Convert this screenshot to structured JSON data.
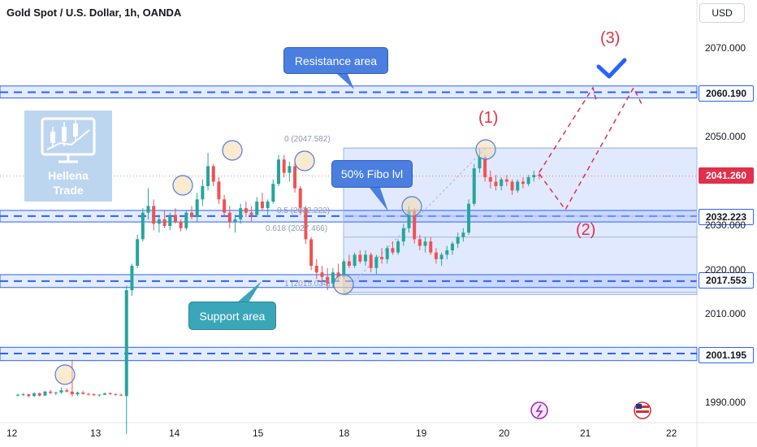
{
  "title": "Gold Spot / U.S. Dollar, 1h, OANDA",
  "currency_button": "USD",
  "logo": {
    "line1": "Hellena",
    "line2": "Trade"
  },
  "callouts": {
    "resistance": "Resistance area",
    "fibo": "50% Fibo lvl",
    "support": "Support area"
  },
  "waves": {
    "w1": "(1)",
    "w2": "(2)",
    "w3": "(3)"
  },
  "fib_labels": {
    "f0": "0 (2047.582)",
    "f05": "0.5 (2032.222)",
    "f0618": "0.618 (2027.466)",
    "f1": "1 (2015.034)"
  },
  "price_tags": {
    "p2060": "2060.190",
    "p2041": "2041.260",
    "p2032": "2032.223",
    "p2017": "2017.553",
    "p2001": "2001.195"
  },
  "colors": {
    "up": "#26a69a",
    "down": "#ef5350",
    "zone": "#2962ff",
    "accent_red": "#e0304a",
    "callout_blue": "#4a7fe0",
    "callout_teal": "#3aa6b9"
  },
  "chart_data": {
    "type": "candlestick",
    "title": "Gold Spot / U.S. Dollar, 1h, OANDA",
    "x_ticks": [
      "12",
      "13",
      "14",
      "15",
      "18",
      "19",
      "20",
      "21",
      "22"
    ],
    "y_ticks": [
      2070,
      2050,
      2030,
      2020,
      2010,
      1990
    ],
    "y_tick_labels": [
      "2070.000",
      "2050.000",
      "2030.000",
      "2020.000",
      "2010.000",
      "1990.000"
    ],
    "ylim": [
      1985,
      2080
    ],
    "horizontal_levels": [
      {
        "name": "resistance",
        "price": 2060.19,
        "band": [
          2058.9,
          2061.6
        ]
      },
      {
        "name": "fibo-0.5",
        "price": 2032.223,
        "band": [
          2030.9,
          2033.5
        ]
      },
      {
        "name": "support",
        "price": 2017.553,
        "band": [
          2016.1,
          2019.0
        ]
      },
      {
        "name": "lower",
        "price": 2001.195,
        "band": [
          1999.6,
          2002.6
        ]
      }
    ],
    "current_price": 2041.26,
    "fibonacci": [
      {
        "level": "0",
        "price": 2047.582
      },
      {
        "level": "0.5",
        "price": 2032.222
      },
      {
        "level": "0.618",
        "price": 2027.466
      },
      {
        "level": "1",
        "price": 2015.034
      }
    ],
    "candles": [
      [
        1991.8,
        1992.1,
        1991.5,
        1991.9
      ],
      [
        1991.9,
        1992.3,
        1991.6,
        1992.0
      ],
      [
        1992.0,
        1992.0,
        1991.3,
        1991.6
      ],
      [
        1991.6,
        1992.5,
        1991.4,
        1992.2
      ],
      [
        1992.2,
        1992.4,
        1991.5,
        1991.7
      ],
      [
        1991.7,
        1992.8,
        1991.6,
        1992.6
      ],
      [
        1992.6,
        1993.0,
        1992.0,
        1992.3
      ],
      [
        1992.3,
        1992.6,
        1991.8,
        1992.4
      ],
      [
        1992.4,
        1993.5,
        1992.1,
        1992.9
      ],
      [
        1992.9,
        1993.3,
        1992.4,
        1992.6
      ],
      [
        1992.6,
        1999.8,
        1991.5,
        1992.0
      ],
      [
        1992.0,
        1992.6,
        1991.6,
        1992.4
      ],
      [
        1992.4,
        1992.8,
        1991.9,
        1992.1
      ],
      [
        1992.1,
        1992.3,
        1991.7,
        1992.0
      ],
      [
        1992.0,
        1992.2,
        1991.6,
        1991.8
      ],
      [
        1991.8,
        1992.0,
        1991.5,
        1991.9
      ],
      [
        1991.9,
        1992.4,
        1991.8,
        1992.2
      ],
      [
        1992.2,
        1992.5,
        1991.9,
        1992.0
      ],
      [
        1992.0,
        1992.2,
        1991.7,
        1991.9
      ],
      [
        1991.9,
        1992.1,
        1991.6,
        1991.8
      ],
      [
        1991.6,
        2016.5,
        1983.0,
        2015.5
      ],
      [
        2015.5,
        2021.5,
        2014.2,
        2021.0
      ],
      [
        2021.0,
        2028.0,
        2020.5,
        2027.0
      ],
      [
        2027.0,
        2034.0,
        2026.5,
        2033.0
      ],
      [
        2033.0,
        2038.5,
        2031.5,
        2034.5
      ],
      [
        2034.5,
        2036.0,
        2029.0,
        2030.5
      ],
      [
        2030.5,
        2032.5,
        2028.5,
        2031.5
      ],
      [
        2031.5,
        2033.5,
        2029.5,
        2030.0
      ],
      [
        2030.0,
        2033.0,
        2029.0,
        2032.5
      ],
      [
        2032.5,
        2034.0,
        2030.5,
        2031.0
      ],
      [
        2031.0,
        2031.5,
        2028.8,
        2029.5
      ],
      [
        2029.5,
        2033.5,
        2029.0,
        2033.0
      ],
      [
        2033.0,
        2034.5,
        2031.5,
        2032.0
      ],
      [
        2032.0,
        2037.5,
        2031.0,
        2036.0
      ],
      [
        2036.0,
        2040.5,
        2034.5,
        2039.0
      ],
      [
        2039.0,
        2046.5,
        2038.0,
        2043.5
      ],
      [
        2043.5,
        2044.0,
        2039.0,
        2040.0
      ],
      [
        2040.0,
        2041.0,
        2035.0,
        2036.0
      ],
      [
        2036.0,
        2037.0,
        2032.0,
        2033.0
      ],
      [
        2033.0,
        2034.5,
        2029.5,
        2031.0
      ],
      [
        2031.0,
        2032.5,
        2028.5,
        2031.5
      ],
      [
        2031.5,
        2035.0,
        2030.5,
        2034.0
      ],
      [
        2034.0,
        2035.5,
        2032.0,
        2033.0
      ],
      [
        2033.0,
        2034.5,
        2031.0,
        2032.5
      ],
      [
        2032.5,
        2036.5,
        2032.0,
        2035.5
      ],
      [
        2035.5,
        2037.5,
        2033.5,
        2034.0
      ],
      [
        2034.0,
        2036.0,
        2032.5,
        2035.5
      ],
      [
        2035.5,
        2040.5,
        2035.0,
        2039.5
      ],
      [
        2039.5,
        2046.0,
        2039.0,
        2045.0
      ],
      [
        2045.0,
        2046.0,
        2041.0,
        2042.0
      ],
      [
        2042.0,
        2044.5,
        2040.0,
        2043.5
      ],
      [
        2043.5,
        2044.5,
        2037.5,
        2038.5
      ],
      [
        2038.5,
        2039.0,
        2032.5,
        2034.0
      ],
      [
        2034.0,
        2034.5,
        2026.0,
        2027.0
      ],
      [
        2027.0,
        2027.5,
        2020.0,
        2021.0
      ],
      [
        2021.0,
        2022.5,
        2018.0,
        2019.5
      ],
      [
        2019.5,
        2021.0,
        2016.5,
        2018.5
      ],
      [
        2018.5,
        2020.5,
        2015.5,
        2017.0
      ],
      [
        2017.0,
        2020.5,
        2016.0,
        2019.5
      ],
      [
        2019.5,
        2021.5,
        2017.5,
        2018.5
      ],
      [
        2018.5,
        2022.5,
        2018.0,
        2022.0
      ],
      [
        2022.0,
        2023.5,
        2020.5,
        2021.0
      ],
      [
        2021.0,
        2024.0,
        2020.5,
        2023.5
      ],
      [
        2023.5,
        2024.5,
        2021.5,
        2022.0
      ],
      [
        2022.0,
        2024.5,
        2021.0,
        2023.5
      ],
      [
        2023.5,
        2024.0,
        2019.5,
        2020.5
      ],
      [
        2020.5,
        2023.5,
        2019.0,
        2023.0
      ],
      [
        2023.0,
        2025.0,
        2021.5,
        2022.5
      ],
      [
        2022.5,
        2025.5,
        2021.5,
        2025.0
      ],
      [
        2025.0,
        2026.5,
        2023.5,
        2024.0
      ],
      [
        2024.0,
        2027.0,
        2023.5,
        2026.5
      ],
      [
        2026.5,
        2030.5,
        2025.5,
        2029.5
      ],
      [
        2029.5,
        2034.5,
        2028.5,
        2033.5
      ],
      [
        2033.5,
        2034.0,
        2026.0,
        2027.0
      ],
      [
        2027.0,
        2028.0,
        2024.5,
        2025.5
      ],
      [
        2025.5,
        2027.5,
        2024.0,
        2026.5
      ],
      [
        2026.5,
        2027.5,
        2023.5,
        2024.0
      ],
      [
        2024.0,
        2025.0,
        2021.5,
        2022.5
      ],
      [
        2022.5,
        2024.0,
        2021.0,
        2023.5
      ],
      [
        2023.5,
        2025.5,
        2022.5,
        2024.5
      ],
      [
        2024.5,
        2026.5,
        2023.5,
        2026.0
      ],
      [
        2026.0,
        2028.5,
        2025.0,
        2027.5
      ],
      [
        2027.5,
        2029.5,
        2026.5,
        2028.5
      ],
      [
        2028.5,
        2036.0,
        2028.0,
        2035.0
      ],
      [
        2035.0,
        2044.0,
        2034.5,
        2043.0
      ],
      [
        2043.0,
        2047.6,
        2042.0,
        2045.5
      ],
      [
        2045.5,
        2046.0,
        2040.0,
        2041.0
      ],
      [
        2041.0,
        2042.5,
        2038.5,
        2040.0
      ],
      [
        2040.0,
        2041.5,
        2038.0,
        2039.0
      ],
      [
        2039.0,
        2041.0,
        2038.0,
        2040.5
      ],
      [
        2040.5,
        2041.5,
        2039.0,
        2040.0
      ],
      [
        2040.0,
        2040.5,
        2037.0,
        2038.0
      ],
      [
        2038.0,
        2040.5,
        2037.5,
        2040.0
      ],
      [
        2040.0,
        2041.0,
        2038.5,
        2039.5
      ],
      [
        2039.5,
        2041.5,
        2039.0,
        2041.0
      ],
      [
        2041.0,
        2042.5,
        2040.0,
        2041.5
      ],
      [
        2041.5,
        2042.0,
        2040.5,
        2041.26
      ]
    ],
    "projection_path": [
      {
        "x": "19.4",
        "price": 2041.26
      },
      {
        "x": "19.6",
        "price": 2033.0
      },
      {
        "x": "20.1",
        "price": 2060.19
      },
      {
        "x": "20.6",
        "price": 2060.19
      }
    ]
  }
}
